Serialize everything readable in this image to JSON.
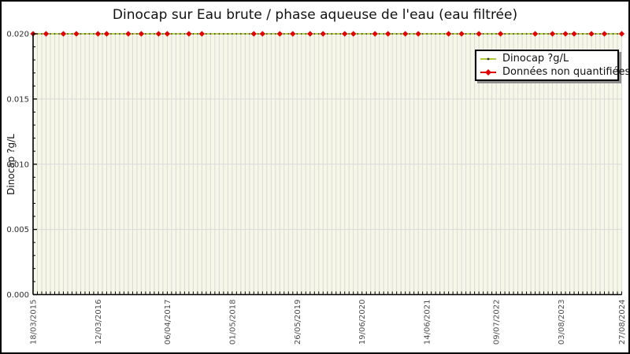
{
  "figure": {
    "title": "Dinocap sur Eau brute / phase aqueuse de l'eau (eau filtrée)"
  },
  "chart_data": {
    "type": "line",
    "title": "Dinocap sur Eau brute / phase aqueuse de l'eau (eau filtrée)",
    "xlabel": "",
    "ylabel": "Dinocap ?g/L",
    "ylim": [
      0.0,
      0.02
    ],
    "yticks": [
      0.0,
      0.005,
      0.01,
      0.015,
      0.02
    ],
    "ytick_labels": [
      "0.000",
      "0.005",
      "0.010",
      "0.015",
      "0.020"
    ],
    "y_minor_tick_step": 0.001,
    "grid": true,
    "n_points": 137,
    "note": "All sample values lie on the quantification-limit line y = 0.020 ?g/L; red diamonds mark non-quantified results",
    "series": [
      {
        "name": "Dinocap ?g/L",
        "color": "#b1c83a",
        "point_color": "#333333",
        "marker": "dot",
        "constant_value": 0.02
      },
      {
        "name": "Données non quantifiées",
        "color": "#e00000",
        "marker": "diamond",
        "value": 0.02,
        "point_indices": [
          0,
          3,
          7,
          10,
          15,
          17,
          22,
          25,
          29,
          31,
          36,
          39,
          51,
          53,
          57,
          60,
          64,
          67,
          72,
          74,
          79,
          82,
          86,
          89,
          96,
          99,
          103,
          108,
          116,
          120,
          123,
          125,
          129,
          132,
          136
        ]
      }
    ],
    "xtick_labels": [
      {
        "index": 0,
        "label": "18/03/2015"
      },
      {
        "index": 15,
        "label": "12/03/2016"
      },
      {
        "index": 31,
        "label": "06/04/2017"
      },
      {
        "index": 46,
        "label": "01/05/2018"
      },
      {
        "index": 61,
        "label": "26/05/2019"
      },
      {
        "index": 76,
        "label": "19/06/2020"
      },
      {
        "index": 91,
        "label": "14/06/2021"
      },
      {
        "index": 107,
        "label": "09/07/2022"
      },
      {
        "index": 122,
        "label": "03/08/2023"
      },
      {
        "index": 136,
        "label": "27/08/2024"
      }
    ],
    "legend_position": "top-right"
  },
  "colors": {
    "plot_background": "#f7f7e8",
    "grid": "#d9d9d9",
    "axis": "#000000",
    "series_line": "#b1c83a",
    "non_quantified_marker": "#e00000",
    "x_tick_label": "#4d4d4d",
    "y_tick_label": "#2b2b2b"
  }
}
